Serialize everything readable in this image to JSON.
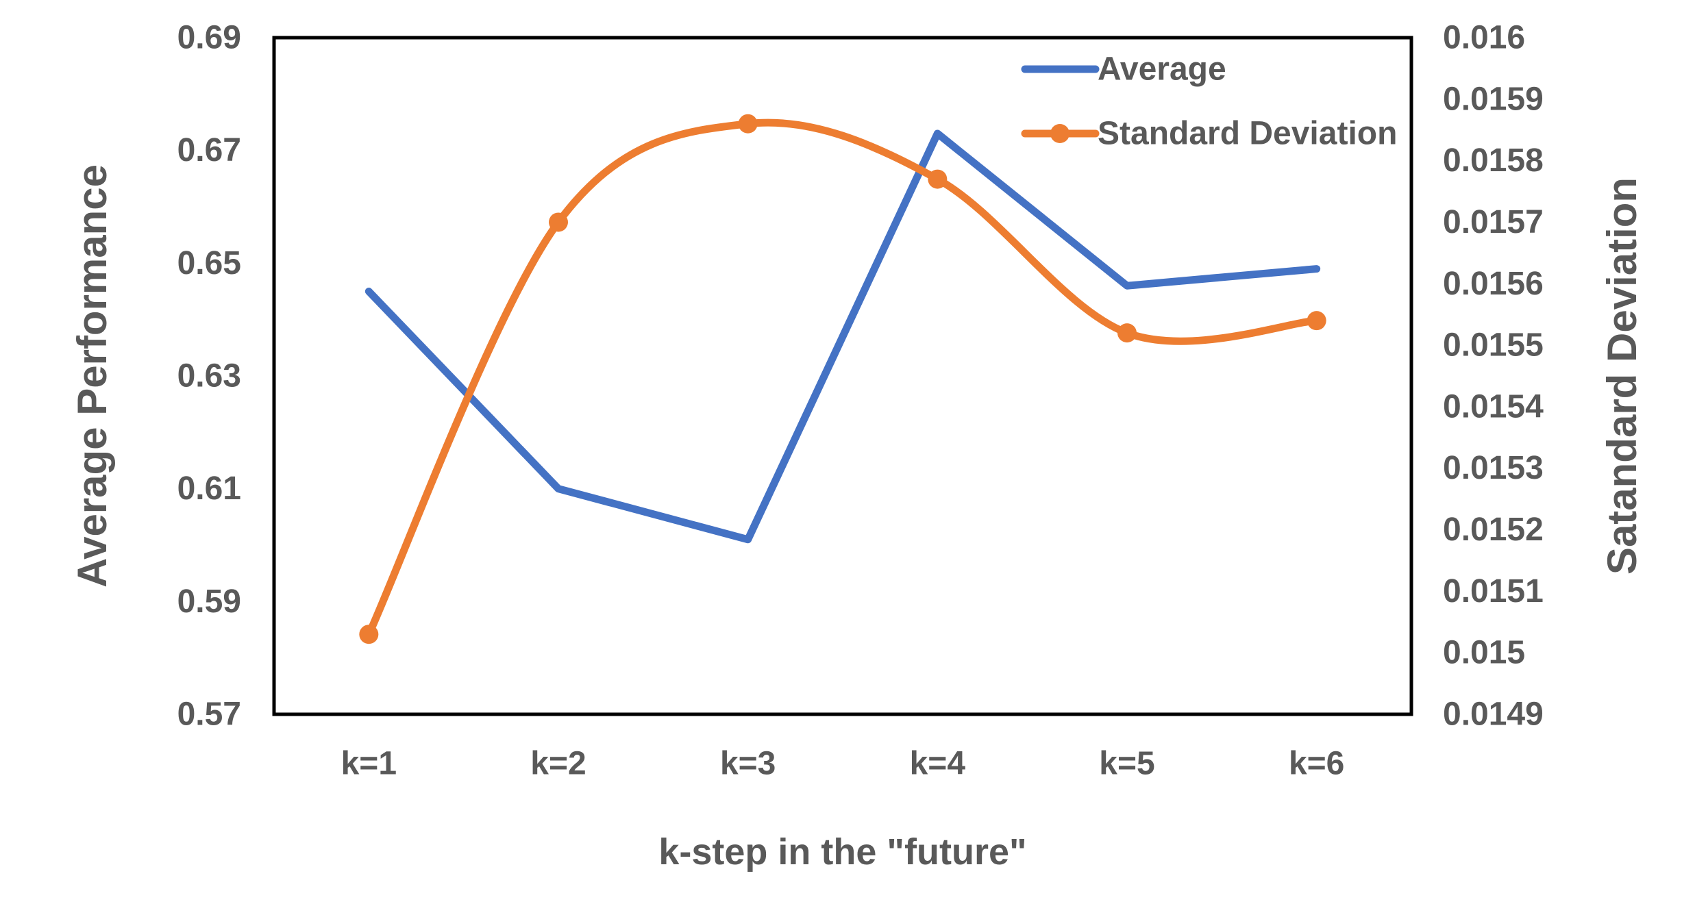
{
  "chart_data": {
    "type": "line",
    "title": "",
    "xlabel": "k-step in the \"future\"",
    "categories": [
      "k=1",
      "k=2",
      "k=3",
      "k=4",
      "k=5",
      "k=6"
    ],
    "series": [
      {
        "name": "Average",
        "axis": "left",
        "color": "#4472C4",
        "marker": false,
        "smooth": false,
        "values": [
          0.645,
          0.61,
          0.601,
          0.673,
          0.646,
          0.649
        ]
      },
      {
        "name": "Standard Deviation",
        "axis": "right",
        "color": "#ED7D31",
        "marker": true,
        "smooth": true,
        "values": [
          0.01503,
          0.0157,
          0.01586,
          0.01577,
          0.01552,
          0.01554
        ]
      }
    ],
    "left_axis": {
      "label": "Average Performance",
      "min": 0.57,
      "max": 0.69,
      "ticks": [
        "0.69",
        "0.67",
        "0.65",
        "0.63",
        "0.61",
        "0.59",
        "0.57"
      ]
    },
    "right_axis": {
      "label": "Satandard Deviation",
      "min": 0.0149,
      "max": 0.016,
      "ticks": [
        "0.016",
        "0.0159",
        "0.0158",
        "0.0157",
        "0.0156",
        "0.0155",
        "0.0154",
        "0.0153",
        "0.0152",
        "0.0151",
        "0.015",
        "0.0149"
      ]
    },
    "legend": {
      "position": "top-right",
      "entries": [
        "Average",
        "Standard Deviation"
      ]
    },
    "grid": false,
    "colors": {
      "text": "#595959",
      "border": "#000000",
      "background": "#ffffff"
    }
  }
}
